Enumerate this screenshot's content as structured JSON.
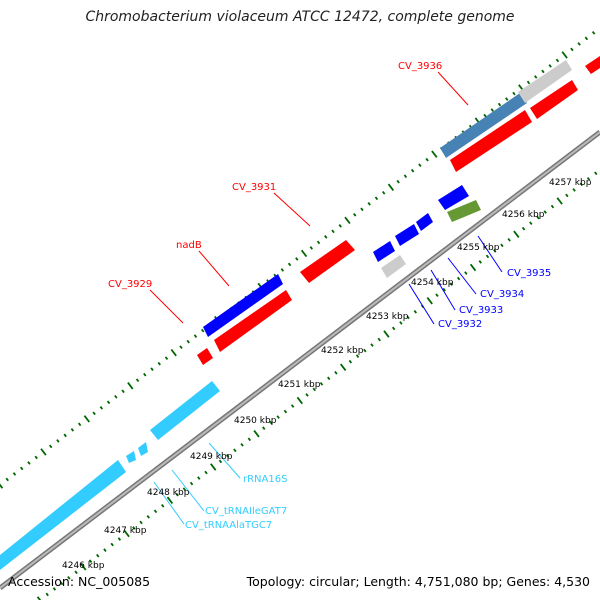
{
  "title": "Chromobacterium violaceum ATCC 12472, complete genome",
  "footer": {
    "accession": "Accession: NC_005085",
    "summary": "Topology: circular; Length: 4,751,080 bp; Genes: 4,530"
  },
  "colors": {
    "forward_cds": "#ff0000",
    "reverse_cds": "#0000ff",
    "rna": "#33ccff",
    "pseudo": "#cccccc",
    "steel": "#4682b4",
    "olive": "#669933",
    "tick": "#006600",
    "backbone": "#999999"
  },
  "scale_labels": [
    "4246 kbp",
    "4247 kbp",
    "4248 kbp",
    "4249 kbp",
    "4250 kbp",
    "4251 kbp",
    "4252 kbp",
    "4253 kbp",
    "4254 kbp",
    "4255 kbp",
    "4256 kbp",
    "4257 kbp"
  ],
  "labels": {
    "forward": [
      "CV_3936",
      "CV_3931",
      "nadB",
      "CV_3929"
    ],
    "reverse": [
      "CV_3935",
      "CV_3934",
      "CV_3933",
      "CV_3932"
    ],
    "rna": [
      "rRNA16S",
      "CV_tRNAIleGAT7",
      "CV_tRNAAlaTGC7"
    ]
  }
}
